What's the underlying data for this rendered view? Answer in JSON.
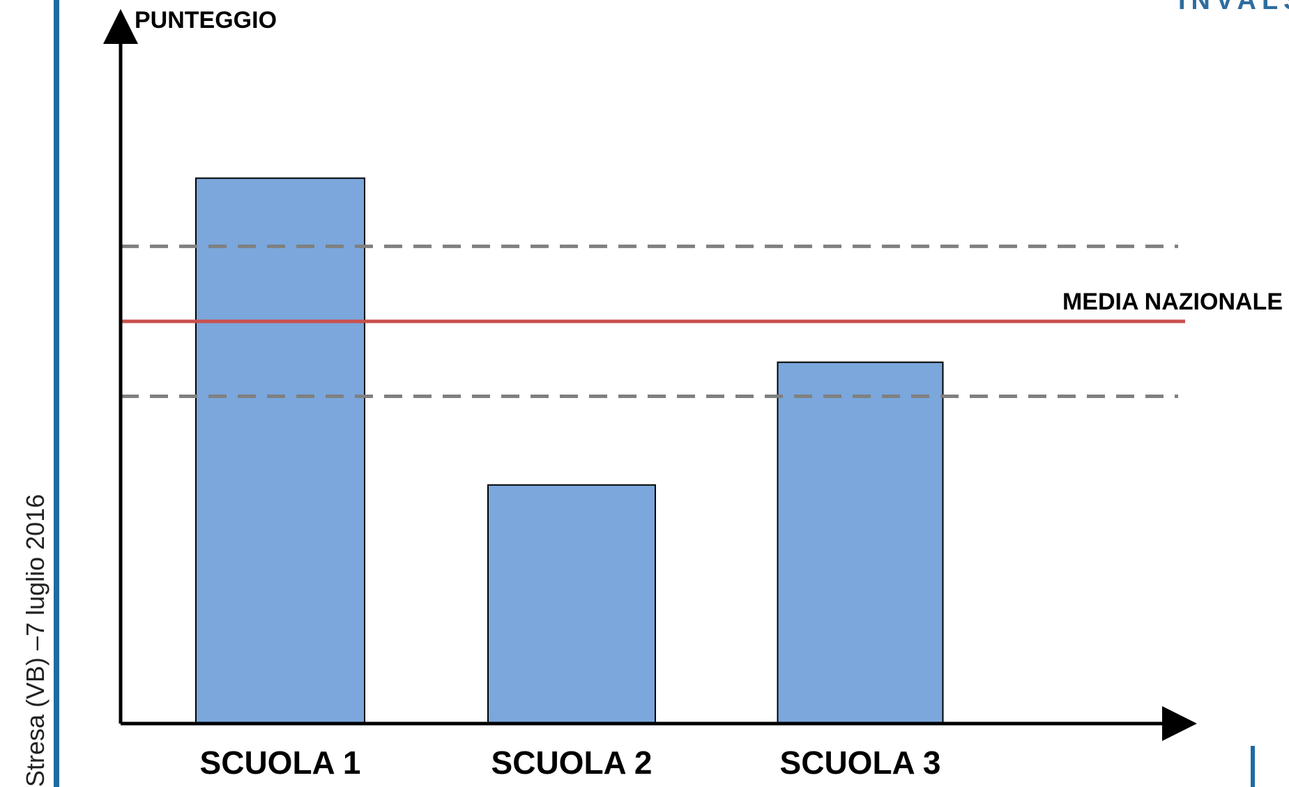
{
  "side_caption": "Stresa (VB) –7 luglio 2016",
  "logo": "INVALSI",
  "colors": {
    "bar_fill": "#7ba7dc",
    "bar_stroke": "#000000",
    "media_line": "#c9504c",
    "band_line": "#808080",
    "axis": "#000000",
    "accent": "#1f6aa3"
  },
  "chart_data": {
    "type": "bar",
    "title": "",
    "ylabel": "PUNTEGGIO",
    "xlabel": "",
    "categories": [
      "SCUOLA 1",
      "SCUOLA 2",
      "SCUOLA 3"
    ],
    "values": [
      80,
      35,
      53
    ],
    "ylim": [
      0,
      100
    ],
    "grid": false,
    "reference_lines": [
      {
        "label": "MEDIA NAZIONALE",
        "value": 59,
        "style": "solid"
      },
      {
        "label": "",
        "value": 70,
        "style": "dashed"
      },
      {
        "label": "",
        "value": 48,
        "style": "dashed"
      }
    ]
  }
}
